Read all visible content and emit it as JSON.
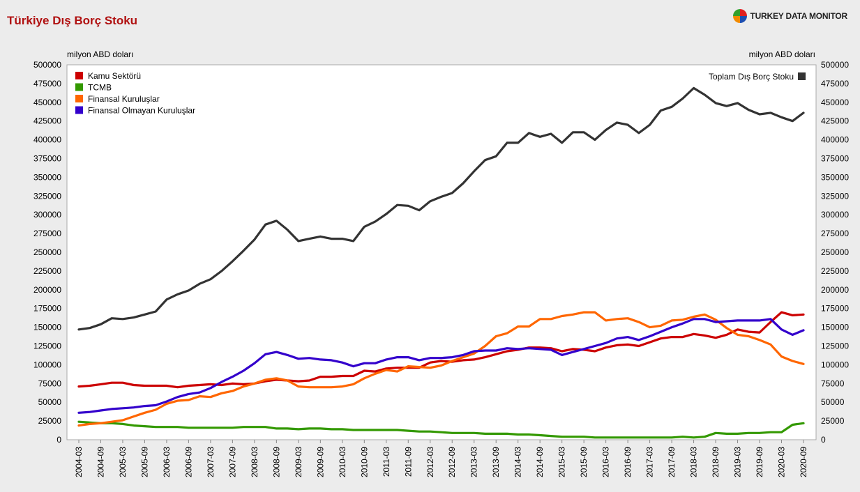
{
  "header": {
    "title": "Türkiye Dış Borç Stoku",
    "brand": "TURKEY DATA MONITOR",
    "logo_colors": [
      "#e02020",
      "#1e4fb0",
      "#f08a00",
      "#33a02c"
    ]
  },
  "chart_data": {
    "type": "line",
    "title": "Türkiye Dış Borç Stoku",
    "ylabel_left": "milyon ABD doları",
    "ylabel_right": "milyon ABD doları",
    "ylim": [
      0,
      500000
    ],
    "yticks": [
      0,
      25000,
      50000,
      75000,
      100000,
      125000,
      150000,
      175000,
      200000,
      225000,
      250000,
      275000,
      300000,
      325000,
      350000,
      375000,
      400000,
      425000,
      450000,
      475000,
      500000
    ],
    "grid": false,
    "legend_left_position": "top-left",
    "legend_right_position": "top-right",
    "x": [
      "2004-03",
      "2004-06",
      "2004-09",
      "2004-12",
      "2005-03",
      "2005-06",
      "2005-09",
      "2005-12",
      "2006-03",
      "2006-06",
      "2006-09",
      "2006-12",
      "2007-03",
      "2007-06",
      "2007-09",
      "2007-12",
      "2008-03",
      "2008-06",
      "2008-09",
      "2008-12",
      "2009-03",
      "2009-06",
      "2009-09",
      "2009-12",
      "2010-03",
      "2010-06",
      "2010-09",
      "2010-12",
      "2011-03",
      "2011-06",
      "2011-09",
      "2011-12",
      "2012-03",
      "2012-06",
      "2012-09",
      "2012-12",
      "2013-03",
      "2013-06",
      "2013-09",
      "2013-12",
      "2014-03",
      "2014-06",
      "2014-09",
      "2014-12",
      "2015-03",
      "2015-06",
      "2015-09",
      "2015-12",
      "2016-03",
      "2016-06",
      "2016-09",
      "2016-12",
      "2017-03",
      "2017-06",
      "2017-09",
      "2017-12",
      "2018-03",
      "2018-06",
      "2018-09",
      "2018-12",
      "2019-03",
      "2019-06",
      "2019-09",
      "2019-12",
      "2020-03",
      "2020-06",
      "2020-09"
    ],
    "xticklabels": [
      "2004-03",
      "2004-09",
      "2005-03",
      "2005-09",
      "2006-03",
      "2006-09",
      "2007-03",
      "2007-09",
      "2008-03",
      "2008-09",
      "2009-03",
      "2009-09",
      "2010-03",
      "2010-09",
      "2011-03",
      "2011-09",
      "2012-03",
      "2012-09",
      "2013-03",
      "2013-09",
      "2014-03",
      "2014-09",
      "2015-03",
      "2015-09",
      "2016-03",
      "2016-09",
      "2017-03",
      "2017-09",
      "2018-03",
      "2018-09",
      "2019-03",
      "2019-09",
      "2020-03",
      "2020-09"
    ],
    "series": [
      {
        "name": "Kamu Sektörü",
        "color": "#cc0000",
        "legend": "left",
        "values": [
          71000,
          72000,
          74000,
          76000,
          76000,
          73000,
          72000,
          72000,
          72000,
          70000,
          72000,
          73000,
          74000,
          73000,
          75000,
          74000,
          75000,
          78000,
          80000,
          79000,
          78000,
          79000,
          84000,
          84000,
          85000,
          85000,
          92000,
          91000,
          95000,
          96000,
          96000,
          96000,
          103000,
          105000,
          104000,
          106000,
          107000,
          110000,
          114000,
          118000,
          120000,
          123000,
          123000,
          122000,
          118000,
          121000,
          120000,
          118000,
          123000,
          126000,
          127000,
          125000,
          130000,
          135000,
          137000,
          137000,
          141000,
          139000,
          136000,
          140000,
          147000,
          144000,
          143000,
          157000,
          170000,
          166000,
          167000
        ]
      },
      {
        "name": "TCMB",
        "color": "#339900",
        "legend": "left",
        "values": [
          24000,
          23000,
          22000,
          22000,
          21000,
          19000,
          18000,
          17000,
          17000,
          17000,
          16000,
          16000,
          16000,
          16000,
          16000,
          17000,
          17000,
          17000,
          15000,
          15000,
          14000,
          15000,
          15000,
          14000,
          14000,
          13000,
          13000,
          13000,
          13000,
          13000,
          12000,
          11000,
          11000,
          10000,
          9000,
          9000,
          9000,
          8000,
          8000,
          8000,
          7000,
          7000,
          6000,
          5000,
          4000,
          4000,
          4000,
          3000,
          3000,
          3000,
          3000,
          3000,
          3000,
          3000,
          3000,
          4000,
          3000,
          4000,
          9000,
          8000,
          8000,
          9000,
          9000,
          10000,
          10000,
          20000,
          22000
        ]
      },
      {
        "name": "Finansal Kuruluşlar",
        "color": "#ff6600",
        "legend": "left",
        "values": [
          19000,
          21000,
          22000,
          24000,
          26000,
          31000,
          36000,
          40000,
          48000,
          52000,
          53000,
          58000,
          57000,
          62000,
          65000,
          71000,
          75000,
          80000,
          82000,
          79000,
          71000,
          70000,
          70000,
          70000,
          71000,
          74000,
          82000,
          88000,
          93000,
          91000,
          98000,
          97000,
          96000,
          99000,
          105000,
          110000,
          115000,
          125000,
          138000,
          142000,
          151000,
          151000,
          161000,
          161000,
          165000,
          167000,
          170000,
          170000,
          159000,
          161000,
          162000,
          157000,
          150000,
          152000,
          159000,
          160000,
          164000,
          167000,
          160000,
          149000,
          140000,
          138000,
          133000,
          127000,
          111000,
          105000,
          101000
        ]
      },
      {
        "name": "Finansal Olmayan Kuruluşlar",
        "color": "#3300cc",
        "legend": "left",
        "values": [
          36000,
          37000,
          39000,
          41000,
          42000,
          43000,
          45000,
          46000,
          51000,
          57000,
          61000,
          63000,
          69000,
          77000,
          84000,
          92000,
          102000,
          114000,
          117000,
          113000,
          108000,
          109000,
          107000,
          106000,
          103000,
          98000,
          102000,
          102000,
          107000,
          110000,
          110000,
          106000,
          109000,
          109000,
          110000,
          113000,
          118000,
          119000,
          119000,
          122000,
          121000,
          122000,
          121000,
          120000,
          113000,
          117000,
          121000,
          125000,
          129000,
          135000,
          137000,
          133000,
          138000,
          144000,
          150000,
          155000,
          161000,
          161000,
          157000,
          158000,
          159000,
          159000,
          159000,
          161000,
          147000,
          140000,
          146000
        ]
      },
      {
        "name": "Toplam Dış Borç Stoku",
        "color": "#333333",
        "legend": "right",
        "values": [
          147000,
          149000,
          154000,
          162000,
          161000,
          163000,
          167000,
          171000,
          187000,
          194000,
          199000,
          208000,
          214000,
          225000,
          238000,
          252000,
          267000,
          287000,
          292000,
          280000,
          265000,
          268000,
          271000,
          268000,
          268000,
          265000,
          284000,
          291000,
          301000,
          313000,
          312000,
          306000,
          318000,
          324000,
          329000,
          342000,
          358000,
          373000,
          378000,
          396000,
          396000,
          409000,
          404000,
          408000,
          396000,
          410000,
          410000,
          400000,
          413000,
          423000,
          420000,
          409000,
          420000,
          439000,
          444000,
          455000,
          469000,
          460000,
          449000,
          445000,
          449000,
          440000,
          434000,
          436000,
          430000,
          425000,
          436000
        ]
      }
    ]
  }
}
